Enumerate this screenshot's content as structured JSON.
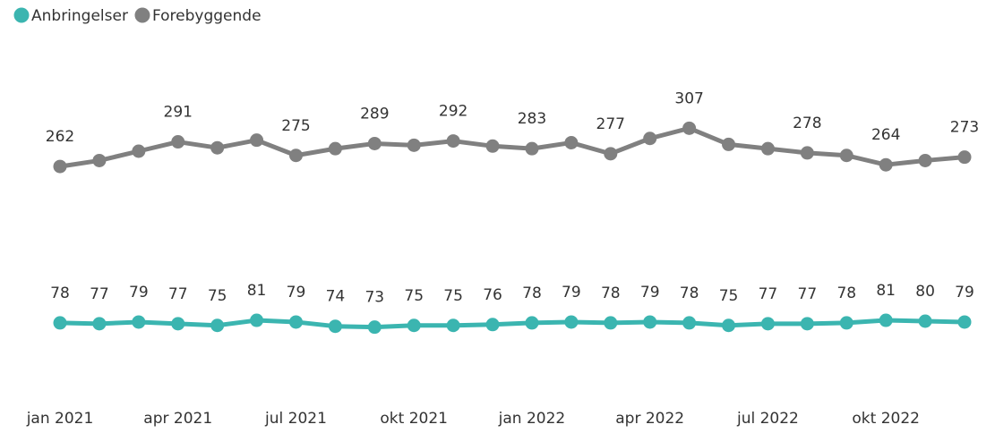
{
  "chart_data": {
    "type": "line",
    "categories": [
      "jan 2021",
      null,
      null,
      "apr 2021",
      null,
      null,
      "jul 2021",
      null,
      null,
      "okt 2021",
      null,
      null,
      "jan 2022",
      null,
      null,
      "apr 2022",
      null,
      null,
      "jul 2022",
      null,
      null,
      "okt 2022",
      null,
      null
    ],
    "series": [
      {
        "name": "Anbringelser",
        "color": "#3bb5b0",
        "values": [
          78,
          77,
          79,
          77,
          75,
          81,
          79,
          74,
          73,
          75,
          75,
          76,
          78,
          79,
          78,
          79,
          78,
          75,
          77,
          77,
          78,
          81,
          80,
          79
        ],
        "value_labels": [
          "78",
          "77",
          "79",
          "77",
          "75",
          "81",
          "79",
          "74",
          "73",
          "75",
          "75",
          "76",
          "78",
          "79",
          "78",
          "79",
          "78",
          "75",
          "77",
          "77",
          "78",
          "81",
          "80",
          "79"
        ]
      },
      {
        "name": "Forebyggende",
        "color": "#808080",
        "values": [
          262,
          269,
          280,
          291,
          284,
          293,
          275,
          283,
          289,
          287,
          292,
          286,
          283,
          290,
          277,
          295,
          307,
          288,
          283,
          278,
          275,
          264,
          269,
          273
        ],
        "value_labels": [
          "262",
          null,
          null,
          "291",
          null,
          null,
          "275",
          null,
          "289",
          null,
          "292",
          null,
          "283",
          null,
          "277",
          null,
          "307",
          null,
          null,
          "278",
          null,
          "264",
          null,
          "273"
        ]
      }
    ],
    "ylim": [
      0,
      400
    ],
    "legend": "top-left"
  }
}
